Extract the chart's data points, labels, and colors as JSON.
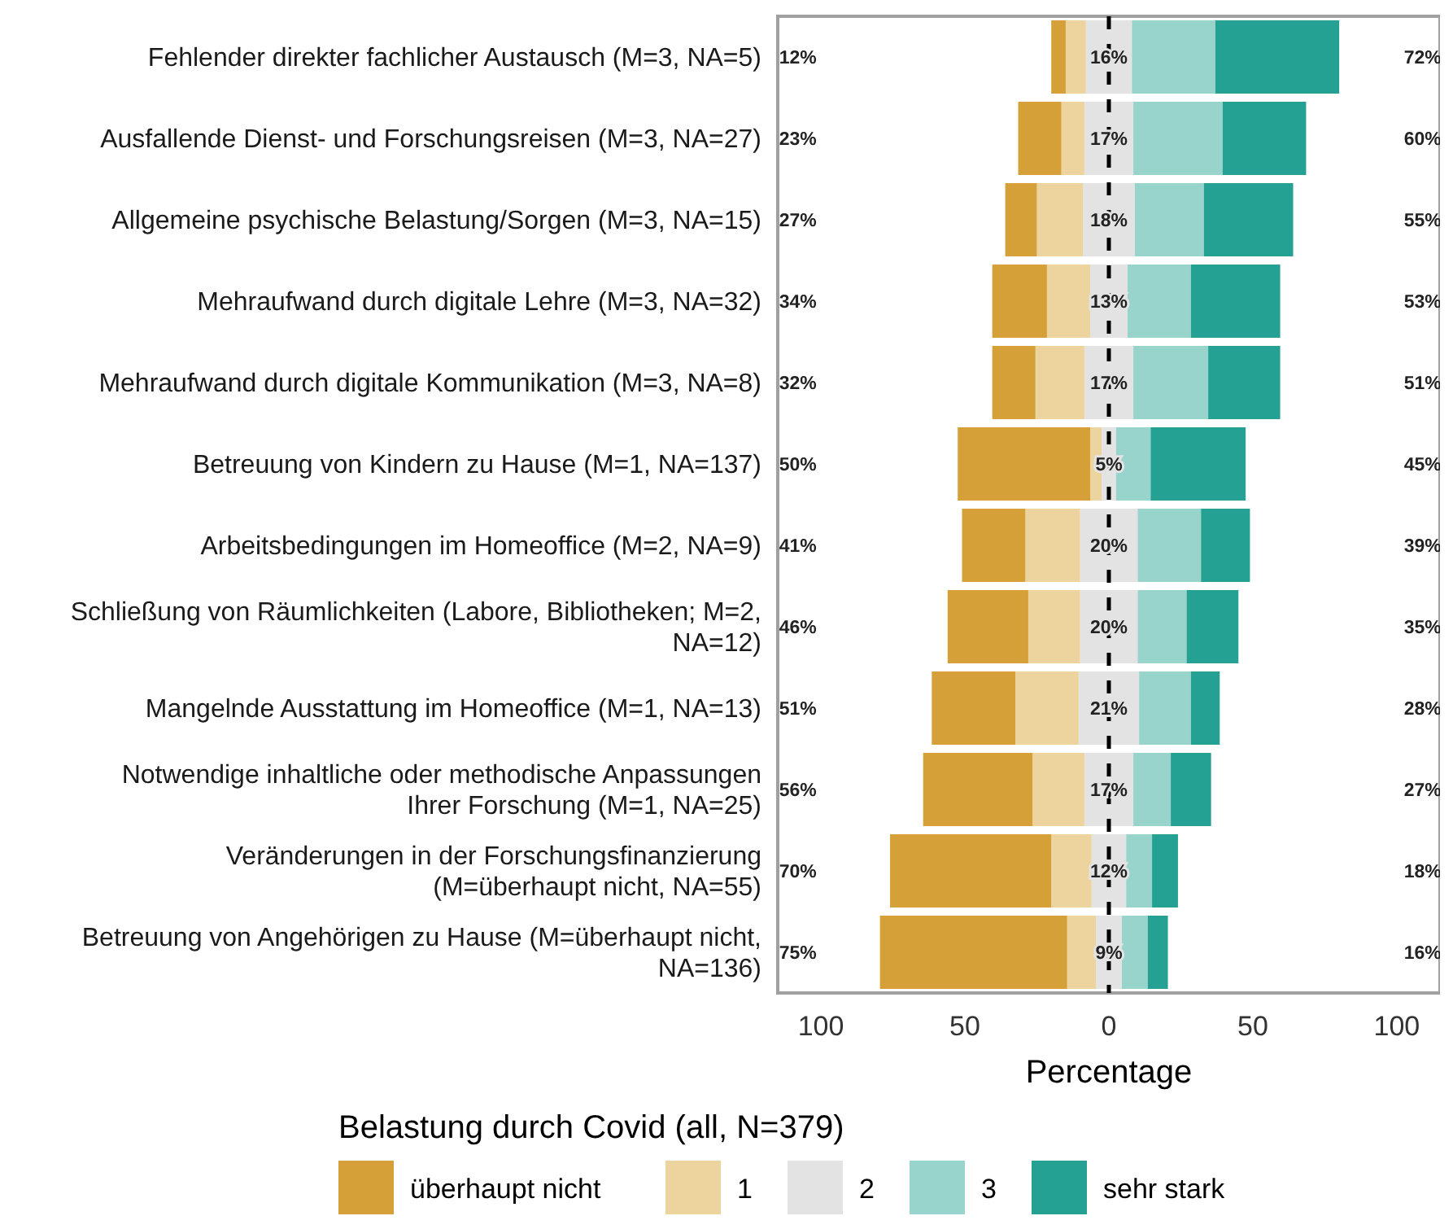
{
  "chart_data": {
    "type": "bar",
    "orientation": "horizontal",
    "stacked": true,
    "xlabel": "Percentage",
    "legend_title": "Belastung durch Covid (all, N=379)",
    "legend": "bottom",
    "categories": [
      "Fehlender direkter fachlicher Austausch (M=3, NA=5)",
      "Ausfallende Dienst- und Forschungsreisen (M=3, NA=27)",
      "Allgemeine psychische Belastung/Sorgen (M=3, NA=15)",
      "Mehraufwand durch digitale Lehre (M=3, NA=32)",
      "Mehraufwand durch digitale Kommunikation (M=3, NA=8)",
      "Betreuung von Kindern zu Hause (M=1, NA=137)",
      "Arbeitsbedingungen im Homeoffice (M=2, NA=9)",
      "Schließung von Räumlichkeiten (Labore, Bibliotheken; M=2, NA=12)",
      "Mangelnde Ausstattung im Homeoffice (M=1, NA=13)",
      "Notwendige inhaltliche oder methodische Anpassungen Ihrer Forschung (M=1, NA=25)",
      "Veränderungen in der Forschungsfinanzierung (M=überhaupt nicht, NA=55)",
      "Betreuung von Angehörigen zu Hause (M=überhaupt nicht, NA=136)"
    ],
    "series": [
      {
        "name": "2",
        "color": "#e3e3e3",
        "values": [
          -8,
          -8.5,
          -9,
          -6.5,
          -8.5,
          -2.5,
          -10,
          -10,
          -10.5,
          -8.5,
          -6,
          -4.5
        ]
      },
      {
        "name": "1",
        "color": "#edd39e",
        "values": [
          -7,
          -8,
          -16,
          -15,
          -17,
          -4,
          -19,
          -18,
          -22,
          -18,
          -14,
          -10
        ]
      },
      {
        "name": "überhaupt nicht",
        "color": "#d4a037",
        "values": [
          -5,
          -15,
          -11,
          -19,
          -15,
          -46,
          -22,
          -28,
          -29,
          -38,
          -56,
          -65
        ]
      },
      {
        "color": "#e3e3e3",
        "values": [
          8,
          8.5,
          9,
          6.5,
          8.5,
          2.5,
          10,
          10,
          10.5,
          8.5,
          6,
          4.5
        ]
      },
      {
        "name": "3",
        "color": "#98d4cc",
        "values": [
          29,
          31,
          24,
          22,
          26,
          12,
          22,
          17,
          18,
          13,
          9,
          9
        ]
      },
      {
        "name": "sehr stark",
        "color": "#25a193",
        "values": [
          43,
          29,
          31,
          31,
          25,
          33,
          17,
          18,
          10,
          14,
          9,
          7
        ]
      }
    ],
    "xlim": [
      -115,
      115
    ],
    "xticks": [
      {
        "value": -100,
        "label": "100"
      },
      {
        "value": -50,
        "label": "50"
      },
      0,
      50,
      100
    ],
    "ref_lines": [
      {
        "axis": "x",
        "value": 0,
        "line_style": "dashed",
        "color": "#000000"
      }
    ],
    "annotations": [
      "12%",
      "16%",
      "72%",
      "23%",
      "17%",
      "60%",
      "27%",
      "18%",
      "55%",
      "34%",
      "13%",
      "53%",
      "32%",
      "17%",
      "51%",
      "50%",
      "5%",
      "45%",
      "41%",
      "20%",
      "39%",
      "46%",
      "20%",
      "35%",
      "51%",
      "21%",
      "28%",
      "56%",
      "17%",
      "27%",
      "70%",
      "12%",
      "18%",
      "75%",
      "9%",
      "16%"
    ]
  }
}
